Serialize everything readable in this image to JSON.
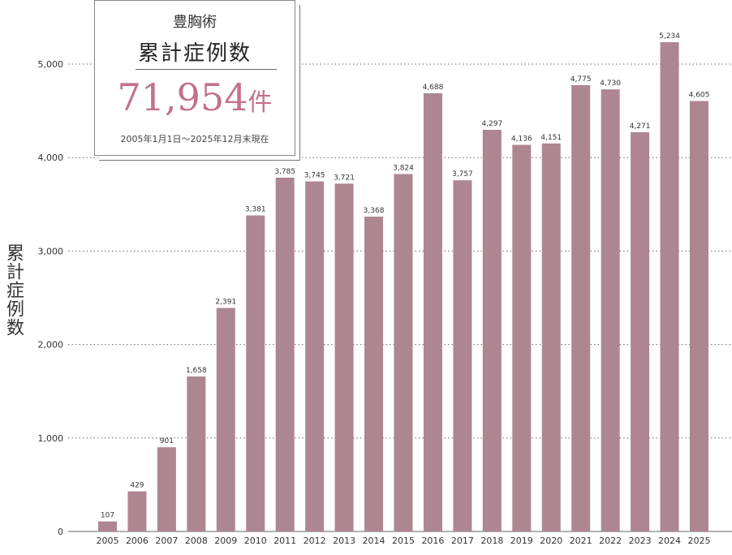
{
  "card": {
    "title_small": "豊胸術",
    "title_large": "累計症例数",
    "total_number": "71,954",
    "total_unit": "件",
    "period": "2005年1月1日～2025年12月末現在"
  },
  "colors": {
    "bar": "#ad8692",
    "accent": "#c4708d",
    "grid": "#666666"
  },
  "chart_data": {
    "type": "bar",
    "ylabel": "累計症例数",
    "xlabel": "",
    "title": "",
    "ylim": [
      0,
      5500
    ],
    "yticks": [
      0,
      1000,
      2000,
      3000,
      4000,
      5000
    ],
    "ytick_labels": [
      "0",
      "1,000",
      "2,000",
      "3,000",
      "4,000",
      "5,000"
    ],
    "grid": "horizontal dotted",
    "categories": [
      "2005",
      "2006",
      "2007",
      "2008",
      "2009",
      "2010",
      "2011",
      "2012",
      "2013",
      "2014",
      "2015",
      "2016",
      "2017",
      "2018",
      "2019",
      "2020",
      "2021",
      "2022",
      "2023",
      "2024",
      "2025"
    ],
    "values": [
      107,
      429,
      901,
      1658,
      2391,
      3381,
      3785,
      3745,
      3721,
      3368,
      3824,
      4688,
      3757,
      4297,
      4136,
      4151,
      4775,
      4730,
      4271,
      5234,
      4605
    ],
    "value_labels": [
      "107",
      "429",
      "901",
      "1,658",
      "2,391",
      "3,381",
      "3,785",
      "3,745",
      "3,721",
      "3,368",
      "3,824",
      "4,688",
      "3,757",
      "4,297",
      "4,136",
      "4,151",
      "4,775",
      "4,730",
      "4,271",
      "5,234",
      "4,605"
    ]
  }
}
